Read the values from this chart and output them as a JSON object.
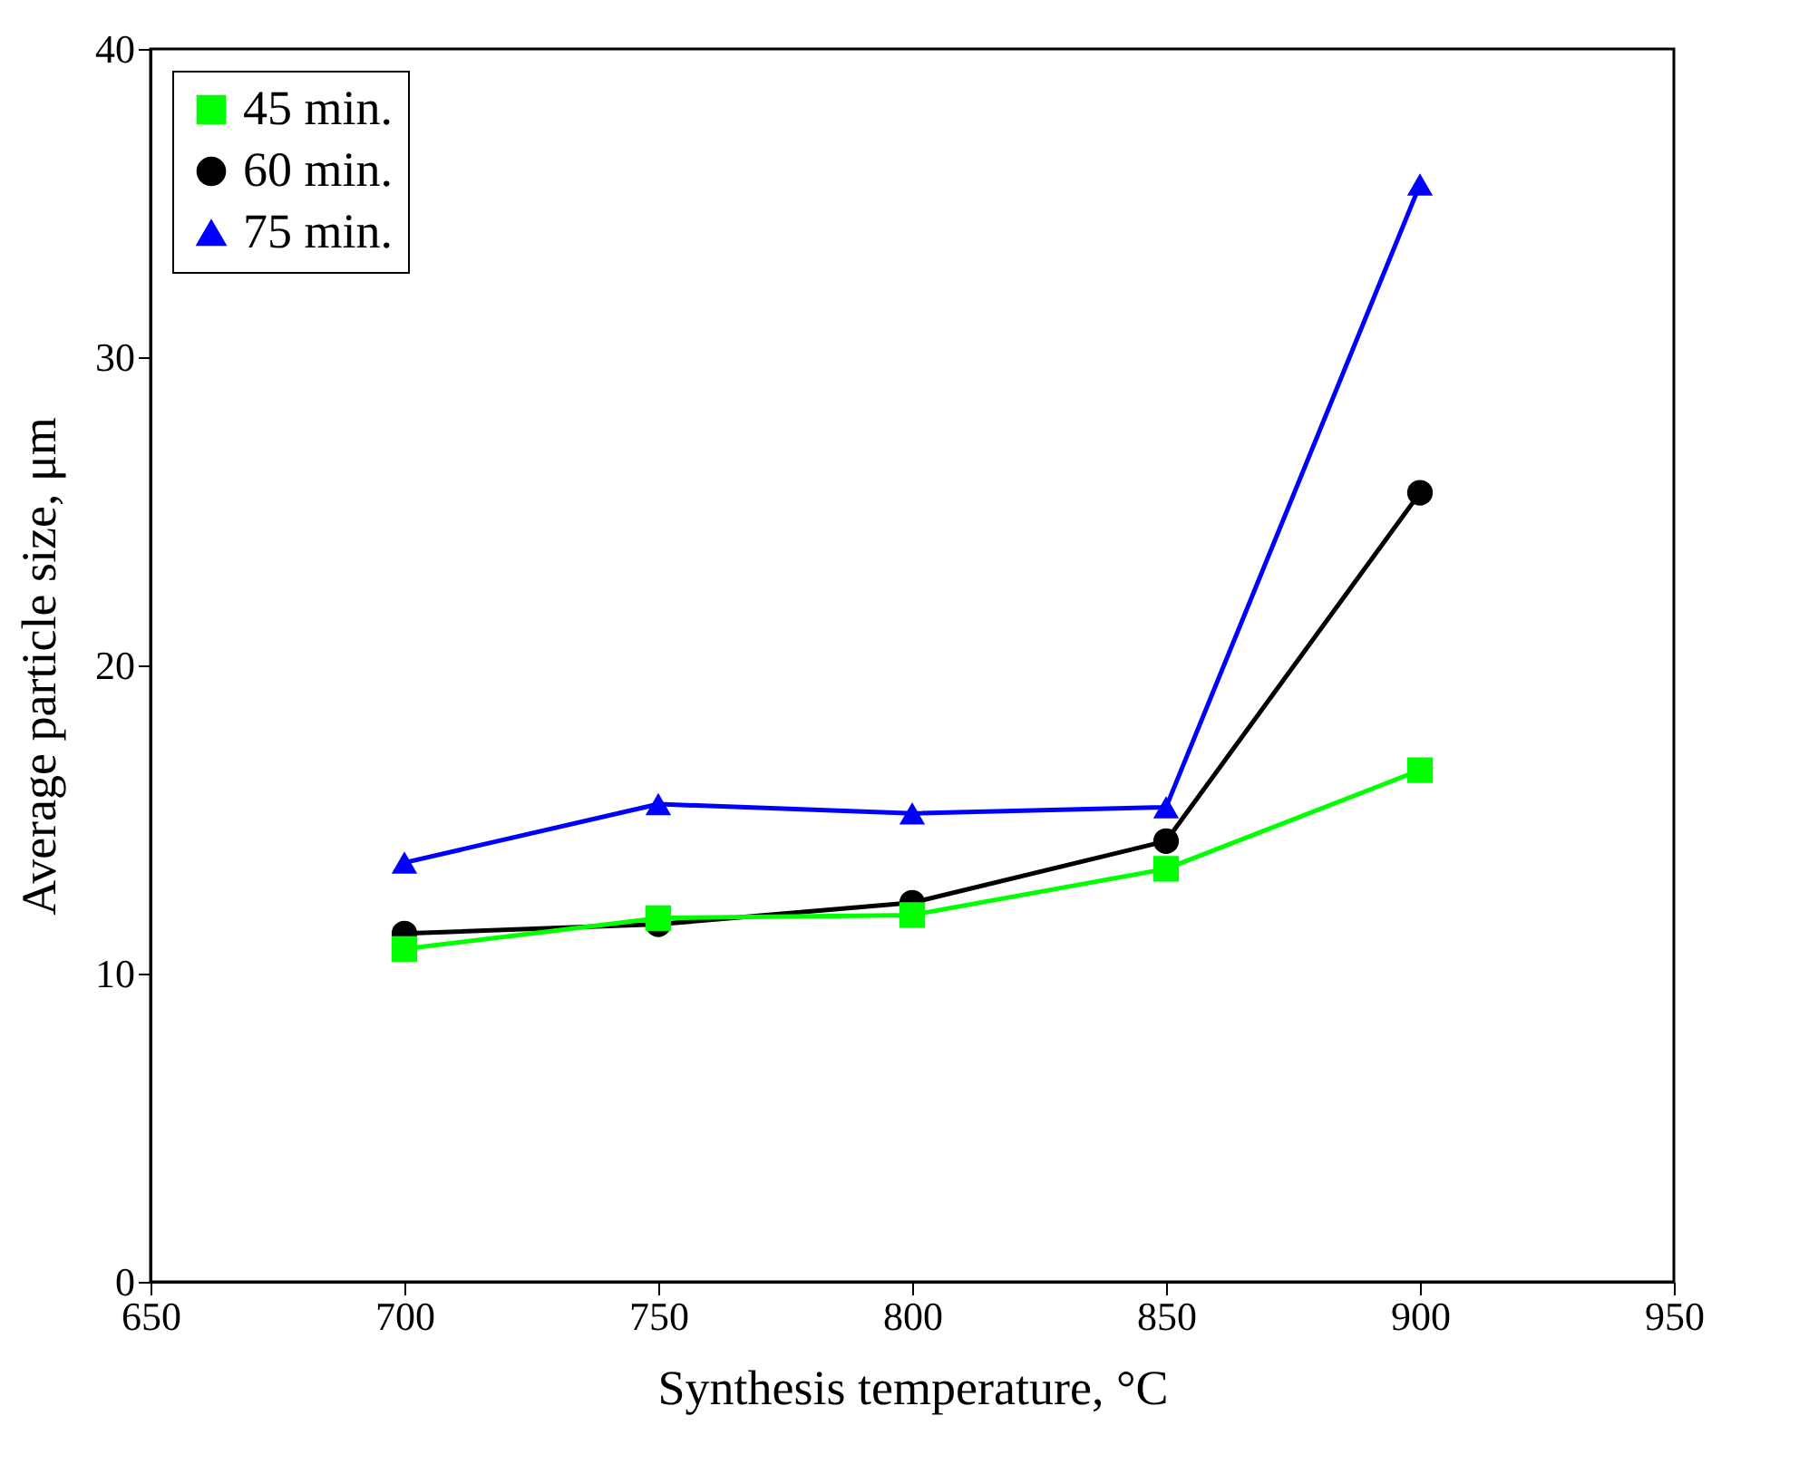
{
  "chart_data": {
    "type": "line",
    "xlabel": "Synthesis temperature, °C",
    "ylabel": "Average particle size, μm",
    "x": [
      700,
      750,
      800,
      850,
      900
    ],
    "series": [
      {
        "name": "45 min.",
        "color": "#00ff00",
        "marker": "square",
        "values": [
          10.8,
          11.8,
          11.9,
          13.4,
          16.6
        ]
      },
      {
        "name": "60 min.",
        "color": "#000000",
        "marker": "circle",
        "values": [
          11.3,
          11.6,
          12.3,
          14.3,
          25.6
        ]
      },
      {
        "name": "75 min.",
        "color": "#0000ff",
        "marker": "triangle",
        "values": [
          13.6,
          15.5,
          15.2,
          15.4,
          35.6
        ]
      }
    ],
    "xlim": [
      650,
      950
    ],
    "xticks": [
      650,
      700,
      750,
      800,
      850,
      900,
      950
    ],
    "ylim": [
      0,
      40
    ],
    "yticks": [
      0,
      10,
      20,
      30,
      40
    ],
    "grid": false,
    "legend": "top left",
    "line_style": "solid"
  }
}
